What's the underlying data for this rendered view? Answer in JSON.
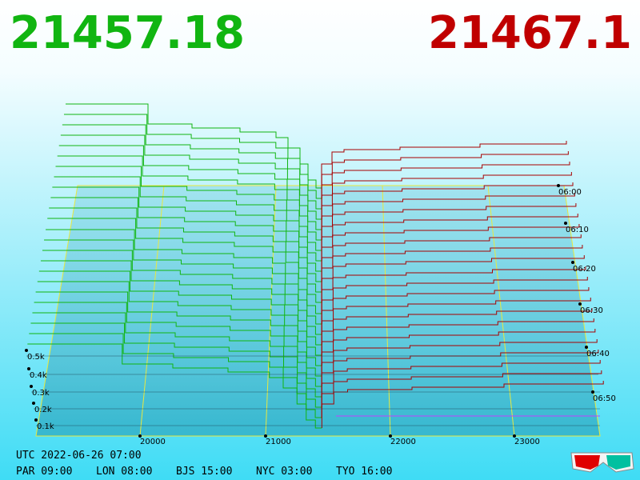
{
  "header": {
    "bid_price": "21457.18",
    "ask_price": "21467.1"
  },
  "price_axis": [
    "20000",
    "21000",
    "22000",
    "23000"
  ],
  "time_axis": [
    "06:00",
    "06:10",
    "06:20",
    "06:30",
    "06:40",
    "06:50"
  ],
  "volume_axis": [
    "0.5k",
    "0.4k",
    "0.3k",
    "0.2k",
    "0.1k"
  ],
  "footer": {
    "utc": "UTC 2022-06-26 07:00",
    "zones": [
      "PAR 09:00",
      "LON 08:00",
      "BJS 15:00",
      "NYC 03:00",
      "TYO 16:00"
    ]
  }
}
